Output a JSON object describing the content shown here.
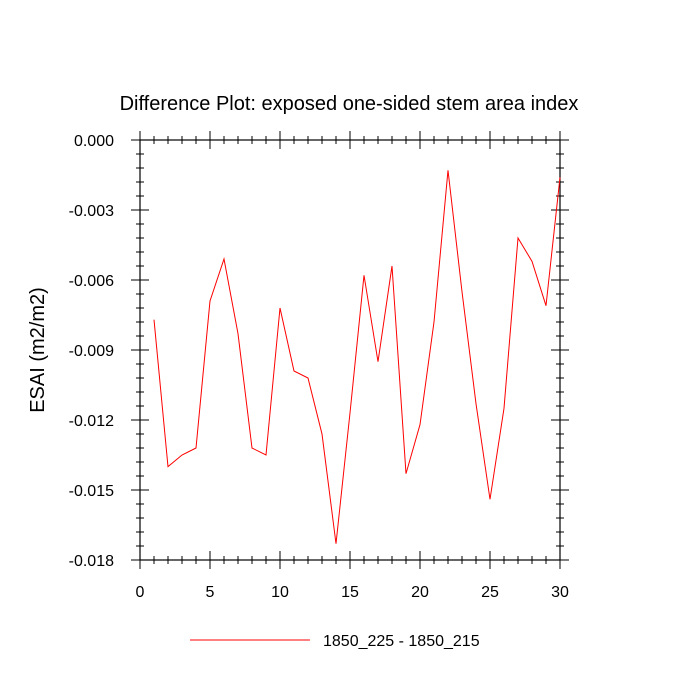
{
  "chart_data": {
    "type": "line",
    "title": "Difference Plot: exposed one-sided stem area index",
    "xlabel": "",
    "ylabel": "ESAI  (m2/m2)",
    "xlim": [
      0,
      30
    ],
    "ylim": [
      -0.018,
      0.0
    ],
    "xticks": [
      0,
      5,
      10,
      15,
      20,
      25,
      30
    ],
    "xtick_labels": [
      "0",
      "5",
      "10",
      "15",
      "20",
      "25",
      "30"
    ],
    "yticks": [
      0.0,
      -0.003,
      -0.006,
      -0.009,
      -0.012,
      -0.015,
      -0.018
    ],
    "ytick_labels": [
      "0.000",
      "-0.003",
      "-0.006",
      "-0.009",
      "-0.012",
      "-0.015",
      "-0.018"
    ],
    "grid": false,
    "legend": "bottom-center",
    "series": [
      {
        "name": "1850_225 - 1850_215",
        "color": "#ff0000",
        "x": [
          1,
          2,
          3,
          4,
          5,
          6,
          7,
          8,
          9,
          10,
          11,
          12,
          13,
          14,
          15,
          16,
          17,
          18,
          19,
          20,
          21,
          22,
          23,
          24,
          25,
          26,
          27,
          28,
          29,
          30
        ],
        "values": [
          -0.0077,
          -0.014,
          -0.0135,
          -0.0132,
          -0.0069,
          -0.0051,
          -0.0083,
          -0.0132,
          -0.0135,
          -0.0072,
          -0.0099,
          -0.0102,
          -0.0126,
          -0.0173,
          -0.0117,
          -0.0058,
          -0.0095,
          -0.0054,
          -0.0143,
          -0.0122,
          -0.0078,
          -0.0013,
          -0.0065,
          -0.0113,
          -0.0154,
          -0.0115,
          -0.0042,
          -0.0052,
          -0.0071,
          -0.0016
        ]
      }
    ]
  }
}
